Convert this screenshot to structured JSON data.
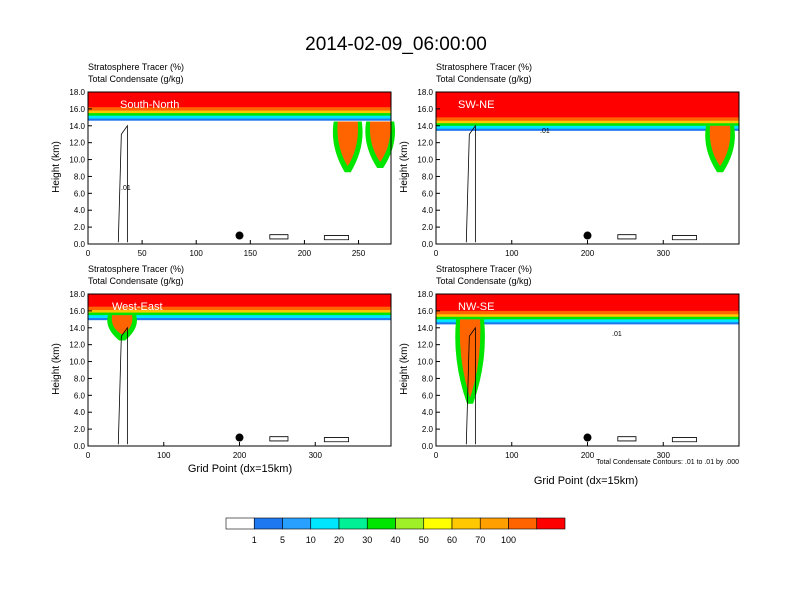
{
  "title": "2014-02-09_06:00:00",
  "footnote": "Total Condensate Contours: .01 to .01 by .000",
  "colorbar": {
    "colors": [
      "#ffffff",
      "#1e78f0",
      "#28a0ff",
      "#00e6ff",
      "#00f096",
      "#00e600",
      "#a0f028",
      "#ffff00",
      "#ffc800",
      "#ffa000",
      "#ff6400",
      "#ff0000"
    ],
    "labels": [
      "1",
      "5",
      "10",
      "20",
      "30",
      "40",
      "50",
      "60",
      "70",
      "100"
    ]
  },
  "chart_data": [
    {
      "type": "contour",
      "panel": "top-left",
      "label_inset": "South-North",
      "title_line1": "Stratosphere Tracer   (%)",
      "title_line2": "Total Condensate   (g/kg)",
      "ylabel": "Height (km)",
      "xlabel": "",
      "xlim": [
        0,
        280
      ],
      "ylim": [
        0,
        18
      ],
      "xticks": [
        {
          "v": 0,
          "t": "0"
        },
        {
          "v": 50,
          "t": "50"
        },
        {
          "v": 100,
          "t": "100"
        },
        {
          "v": 150,
          "t": "150"
        },
        {
          "v": 200,
          "t": "200"
        },
        {
          "v": 250,
          "t": "250"
        }
      ],
      "yticks": [
        "0.0",
        "2.0",
        "4.0",
        "6.0",
        "8.0",
        "10.0",
        "12.0",
        "14.0",
        "16.0",
        "18.0"
      ],
      "marker": {
        "x": 140,
        "y": 1.0
      },
      "contour_label": ".01",
      "tracer_base_km": 15.2,
      "intrusions": [
        {
          "x": 240,
          "top": 14.5,
          "bottom": 8.5
        },
        {
          "x": 270,
          "top": 14.5,
          "bottom": 9.0
        }
      ]
    },
    {
      "type": "contour",
      "panel": "top-right",
      "label_inset": "SW-NE",
      "title_line1": "Stratosphere Tracer   (%)",
      "title_line2": "Total Condensate   (g/kg)",
      "ylabel": "Height (km)",
      "xlabel": "",
      "xlim": [
        0,
        400
      ],
      "ylim": [
        0,
        18
      ],
      "xticks": [
        {
          "v": 0,
          "t": "0"
        },
        {
          "v": 100,
          "t": "100"
        },
        {
          "v": 200,
          "t": "200"
        },
        {
          "v": 300,
          "t": "300"
        }
      ],
      "yticks": [
        "0.0",
        "2.0",
        "4.0",
        "6.0",
        "8.0",
        "10.0",
        "12.0",
        "14.0",
        "16.0",
        "18.0"
      ],
      "marker": {
        "x": 200,
        "y": 1.0
      },
      "contour_label": ".01",
      "tracer_base_km": 14.0,
      "intrusions": [
        {
          "x": 375,
          "top": 14.0,
          "bottom": 8.5
        }
      ]
    },
    {
      "type": "contour",
      "panel": "bottom-left",
      "label_inset": "West-East",
      "title_line1": "Stratosphere Tracer   (%)",
      "title_line2": "Total Condensate   (g/kg)",
      "ylabel": "Height (km)",
      "xlabel": "Grid Point (dx=15km)",
      "xlim": [
        0,
        400
      ],
      "ylim": [
        0,
        18
      ],
      "xticks": [
        {
          "v": 0,
          "t": "0"
        },
        {
          "v": 100,
          "t": "100"
        },
        {
          "v": 200,
          "t": "200"
        },
        {
          "v": 300,
          "t": "300"
        }
      ],
      "yticks": [
        "0.0",
        "2.0",
        "4.0",
        "6.0",
        "8.0",
        "10.0",
        "12.0",
        "14.0",
        "16.0",
        "18.0"
      ],
      "marker": {
        "x": 200,
        "y": 1.0
      },
      "contour_label": "",
      "tracer_base_km": 15.5,
      "intrusions": [
        {
          "x": 45,
          "top": 15.5,
          "bottom": 12.5
        }
      ]
    },
    {
      "type": "contour",
      "panel": "bottom-right",
      "label_inset": "NW-SE",
      "title_line1": "Stratosphere Tracer   (%)",
      "title_line2": "Total Condensate   (g/kg)",
      "ylabel": "Height (km)",
      "xlabel": "Grid Point (dx=15km)",
      "xlim": [
        0,
        400
      ],
      "ylim": [
        0,
        18
      ],
      "xticks": [
        {
          "v": 0,
          "t": "0"
        },
        {
          "v": 100,
          "t": "100"
        },
        {
          "v": 200,
          "t": "200"
        },
        {
          "v": 300,
          "t": "300"
        }
      ],
      "yticks": [
        "0.0",
        "2.0",
        "4.0",
        "6.0",
        "8.0",
        "10.0",
        "12.0",
        "14.0",
        "16.0",
        "18.0"
      ],
      "marker": {
        "x": 200,
        "y": 1.0
      },
      "contour_label": ".01",
      "tracer_base_km": 15.0,
      "intrusions": [
        {
          "x": 45,
          "top": 15.0,
          "bottom": 5.0
        }
      ]
    }
  ]
}
